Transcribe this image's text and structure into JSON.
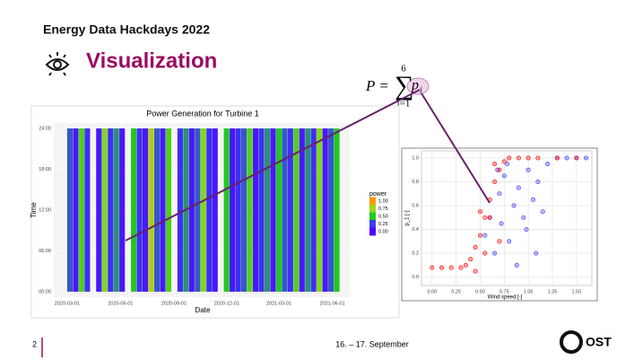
{
  "header": {
    "title": "Energy Data Hackdays 2022",
    "section": "Visualization"
  },
  "formula": {
    "lhs": "P =",
    "sum": "∑",
    "upper": "6",
    "lower": "i=1",
    "term": "p",
    "sub": "i"
  },
  "charts": [
    {
      "type": "heatmap",
      "title": "Power Generation for Turbine 1",
      "x_label": "Date",
      "y_label": "Time",
      "legend_title": "power",
      "x": [
        0,
        10,
        20,
        30,
        40,
        50,
        60,
        70,
        80,
        90,
        100,
        110,
        120,
        130,
        140,
        150,
        160,
        170,
        180,
        190,
        200,
        210,
        220,
        230,
        240,
        250,
        260,
        270,
        280,
        290,
        300,
        310,
        320,
        330,
        340,
        350,
        360,
        370,
        380,
        390,
        400,
        410,
        420,
        430,
        440,
        450,
        460
      ],
      "values": [
        0.3,
        0.1,
        0.6,
        0.2,
        null,
        0.1,
        0.7,
        0.2,
        0.4,
        0.1,
        null,
        0.5,
        0.2,
        0.1,
        0.8,
        0.3,
        0.1,
        0.6,
        null,
        0.2,
        0.4,
        0.1,
        0.3,
        0.7,
        0.2,
        0.1,
        null,
        0.5,
        0.1,
        0.2,
        0.3,
        0.6,
        0.1,
        0.2,
        0.4,
        0.1,
        0.5,
        0.3,
        0.2,
        0.6,
        0.1,
        0.4,
        0.2,
        0.7,
        0.1,
        0.3,
        0.5
      ],
      "colorscale": [
        [
          0,
          "#5000ff"
        ],
        [
          0.25,
          "#3a3cf0"
        ],
        [
          0.5,
          "#22c822"
        ],
        [
          0.75,
          "#9ad81e"
        ],
        [
          1,
          "#ff9a00"
        ]
      ],
      "legend_ticks": [
        {
          "value": 1,
          "label": "1.00"
        },
        {
          "value": 0.75,
          "label": "0.75"
        },
        {
          "value": 0.5,
          "label": "0.50"
        },
        {
          "value": 0.25,
          "label": "0.25"
        },
        {
          "value": 0,
          "label": "0.00"
        }
      ],
      "xlim": [
        -23,
        487
      ],
      "xticks": [
        {
          "value": 0,
          "label": "2020-03-01"
        },
        {
          "value": 92,
          "label": "2020-06-01"
        },
        {
          "value": 184,
          "label": "2020-09-01"
        },
        {
          "value": 275,
          "label": "2020-12-01"
        },
        {
          "value": 365,
          "label": "2021-03-01"
        },
        {
          "value": 457,
          "label": "2021-06-01"
        }
      ],
      "ylim": [
        -0.8,
        24.8
      ],
      "yticks": [
        {
          "value": 0,
          "label": "00:00"
        },
        {
          "value": 6,
          "label": "06:00"
        },
        {
          "value": 12,
          "label": "12:00"
        },
        {
          "value": 18,
          "label": "18:00"
        },
        {
          "value": 24,
          "label": "24:00"
        }
      ],
      "grid": true
    },
    {
      "type": "scatter",
      "x_label": "Wind speed [-]",
      "y_label": "p_1 [-]",
      "series": [
        {
          "name": "blue",
          "color": "#3b3bff",
          "x": [
            0.55,
            0.6,
            0.65,
            0.7,
            0.72,
            0.75,
            0.8,
            0.85,
            0.9,
            0.95,
            1.0,
            1.05,
            1.1,
            1.15,
            1.2,
            1.3,
            1.4,
            1.5,
            1.6,
            0.78,
            0.88,
            0.98,
            1.08,
            0.68
          ],
          "values": [
            0.35,
            0.5,
            0.2,
            0.7,
            0.45,
            0.85,
            0.3,
            0.6,
            0.75,
            0.5,
            0.9,
            0.65,
            0.8,
            0.55,
            0.95,
            1.0,
            1.0,
            1.0,
            1.0,
            0.95,
            0.1,
            0.4,
            0.2,
            0.9
          ]
        },
        {
          "name": "red",
          "color": "#ff0000",
          "x": [
            0.0,
            0.1,
            0.2,
            0.3,
            0.35,
            0.4,
            0.45,
            0.5,
            0.55,
            0.6,
            0.65,
            0.7,
            0.75,
            0.8,
            0.9,
            1.0,
            1.1,
            1.3,
            1.5,
            0.5,
            0.6,
            0.7,
            0.55,
            0.65,
            0.45
          ],
          "values": [
            0.08,
            0.08,
            0.08,
            0.08,
            0.1,
            0.15,
            0.25,
            0.35,
            0.5,
            0.65,
            0.8,
            0.9,
            0.97,
            1.0,
            1.0,
            1.0,
            1.0,
            1.0,
            1.0,
            0.55,
            0.5,
            0.3,
            0.2,
            0.95,
            0.05
          ]
        }
      ],
      "xlim": [
        -0.11,
        1.66
      ],
      "xticks": [
        {
          "value": 0,
          "label": "0.00"
        },
        {
          "value": 0.25,
          "label": "0.25"
        },
        {
          "value": 0.5,
          "label": "0.50"
        },
        {
          "value": 0.75,
          "label": "0.75"
        },
        {
          "value": 1,
          "label": "1.00"
        },
        {
          "value": 1.25,
          "label": "1.25"
        },
        {
          "value": 1.5,
          "label": "1.50"
        }
      ],
      "ylim": [
        -0.07,
        1.06
      ],
      "yticks": [
        {
          "value": 0,
          "label": "0.0"
        },
        {
          "value": 0.2,
          "label": "0.2"
        },
        {
          "value": 0.4,
          "label": "0.4"
        },
        {
          "value": 0.6,
          "label": "0.6"
        },
        {
          "value": 0.8,
          "label": "0.8"
        },
        {
          "value": 1,
          "label": "1.0"
        }
      ],
      "grid": true
    }
  ],
  "footer": {
    "page": "2",
    "date": "16. – 17. September",
    "logo": "OST"
  }
}
